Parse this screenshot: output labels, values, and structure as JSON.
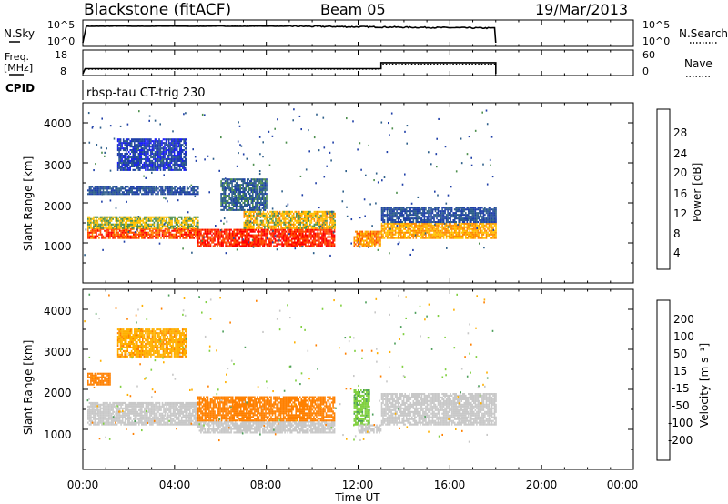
{
  "header": {
    "title": "Blackstone (fitACF)",
    "beam": "Beam 05",
    "date": "19/Mar/2013"
  },
  "top_panels": {
    "nsky_label": "N.Sky",
    "nsky_ticks": [
      "10^5",
      "10^0"
    ],
    "nsearch_label": "N.Search",
    "nsearch_ticks": [
      "10^5",
      "10^0"
    ],
    "freq_label": "Freq.",
    "freq_unit": "[MHz]",
    "freq_ticks": [
      "18",
      "8"
    ],
    "nave_label": "Nave",
    "nave_ticks": [
      "60",
      "0"
    ],
    "cpid_label": "CPID",
    "cpid_text": "rbsp-tau CT-trig 230"
  },
  "x_axis": {
    "label": "Time UT",
    "ticks": [
      "00:00",
      "04:00",
      "08:00",
      "12:00",
      "16:00",
      "20:00",
      "00:00"
    ]
  },
  "power_panel": {
    "ylabel": "Slant Range [km]",
    "yticks": [
      "4000",
      "3000",
      "2000",
      "1000"
    ],
    "colorbar_label": "Power [dB]",
    "colorbar_ticks": [
      "28",
      "24",
      "20",
      "16",
      "12",
      "8",
      "4"
    ],
    "colorbar_colors": [
      "#ff0000",
      "#ff4a00",
      "#ff8a00",
      "#ffc000",
      "#4d8f4d",
      "#2e5f8a",
      "#1f3fa8",
      "#1a1aff"
    ]
  },
  "velocity_panel": {
    "ylabel": "Slant Range [km]",
    "yticks": [
      "4000",
      "3000",
      "2000",
      "1000"
    ],
    "colorbar_label": "Velocity [m s⁻¹]",
    "colorbar_ticks": [
      "200",
      "100",
      "50",
      "15",
      "-15",
      "-50",
      "-100",
      "-200"
    ],
    "colorbar_colors": [
      "#2020c0",
      "#2e6f8a",
      "#4d9f5a",
      "#80d040",
      "#c8c8c8",
      "#ffb000",
      "#ff8000",
      "#ff4000",
      "#ff0000"
    ]
  },
  "chart_data": [
    {
      "type": "line",
      "title": "N.Sky / N.Search",
      "x_range_hours": [
        0,
        24
      ],
      "data_end_hour": 18,
      "series": [
        {
          "name": "N.Sky",
          "x": [
            0,
            0.15,
            2,
            5,
            8,
            10,
            12,
            14,
            16,
            17.9,
            18
          ],
          "y_log10": [
            0,
            4.6,
            4.5,
            4.3,
            4.4,
            4.8,
            4.5,
            4.2,
            3.9,
            4.0,
            0
          ]
        }
      ]
    },
    {
      "type": "line",
      "title": "Freq. / Nave",
      "x_range_hours": [
        0,
        24
      ],
      "series": [
        {
          "name": "Freq.",
          "x": [
            0,
            0.1,
            13,
            13,
            18,
            18
          ],
          "y": [
            8,
            10.5,
            10.5,
            13.5,
            13.5,
            8
          ]
        }
      ]
    },
    {
      "type": "heatmap",
      "title": "Power [dB]",
      "x_range_hours": [
        0,
        24
      ],
      "ylim": [
        0,
        4500
      ],
      "value_range": [
        0,
        32
      ],
      "bands": [
        {
          "t0": 0.2,
          "t1": 5.0,
          "r0": 1100,
          "r1": 1350,
          "value": 26
        },
        {
          "t0": 0.2,
          "t1": 5.0,
          "r0": 1350,
          "r1": 1650,
          "value": 16
        },
        {
          "t0": 0.2,
          "t1": 5.0,
          "r0": 2200,
          "r1": 2400,
          "value": 8
        },
        {
          "t0": 1.5,
          "t1": 4.5,
          "r0": 2800,
          "r1": 3600,
          "value": 6
        },
        {
          "t0": 5.0,
          "t1": 11.0,
          "r0": 900,
          "r1": 1350,
          "value": 28
        },
        {
          "t0": 7.0,
          "t1": 11.0,
          "r0": 1350,
          "r1": 1800,
          "value": 18
        },
        {
          "t0": 6.0,
          "t1": 8.0,
          "r0": 1800,
          "r1": 2600,
          "value": 10
        },
        {
          "t0": 11.8,
          "t1": 13.0,
          "r0": 900,
          "r1": 1300,
          "value": 22
        },
        {
          "t0": 13.0,
          "t1": 18.0,
          "r0": 1100,
          "r1": 1500,
          "value": 20
        },
        {
          "t0": 13.0,
          "t1": 18.0,
          "r0": 1500,
          "r1": 1900,
          "value": 8
        }
      ]
    },
    {
      "type": "heatmap",
      "title": "Velocity [m s⁻¹]",
      "x_range_hours": [
        0,
        24
      ],
      "ylim": [
        0,
        4500
      ],
      "value_range": [
        -250,
        250
      ],
      "bands": [
        {
          "t0": 0.2,
          "t1": 5.0,
          "r0": 1100,
          "r1": 1650,
          "value": 0
        },
        {
          "t0": 0.2,
          "t1": 1.2,
          "r0": 2100,
          "r1": 2400,
          "value": -70
        },
        {
          "t0": 1.5,
          "t1": 4.5,
          "r0": 2800,
          "r1": 3500,
          "value": -40
        },
        {
          "t0": 5.0,
          "t1": 11.0,
          "r0": 900,
          "r1": 1200,
          "value": 0
        },
        {
          "t0": 5.0,
          "t1": 11.0,
          "r0": 1200,
          "r1": 1800,
          "value": -70
        },
        {
          "t0": 11.8,
          "t1": 12.5,
          "r0": 1100,
          "r1": 2000,
          "value": 40
        },
        {
          "t0": 12.0,
          "t1": 13.0,
          "r0": 900,
          "r1": 1100,
          "value": 0
        },
        {
          "t0": 13.0,
          "t1": 18.0,
          "r0": 1100,
          "r1": 1900,
          "value": 0
        }
      ]
    }
  ]
}
